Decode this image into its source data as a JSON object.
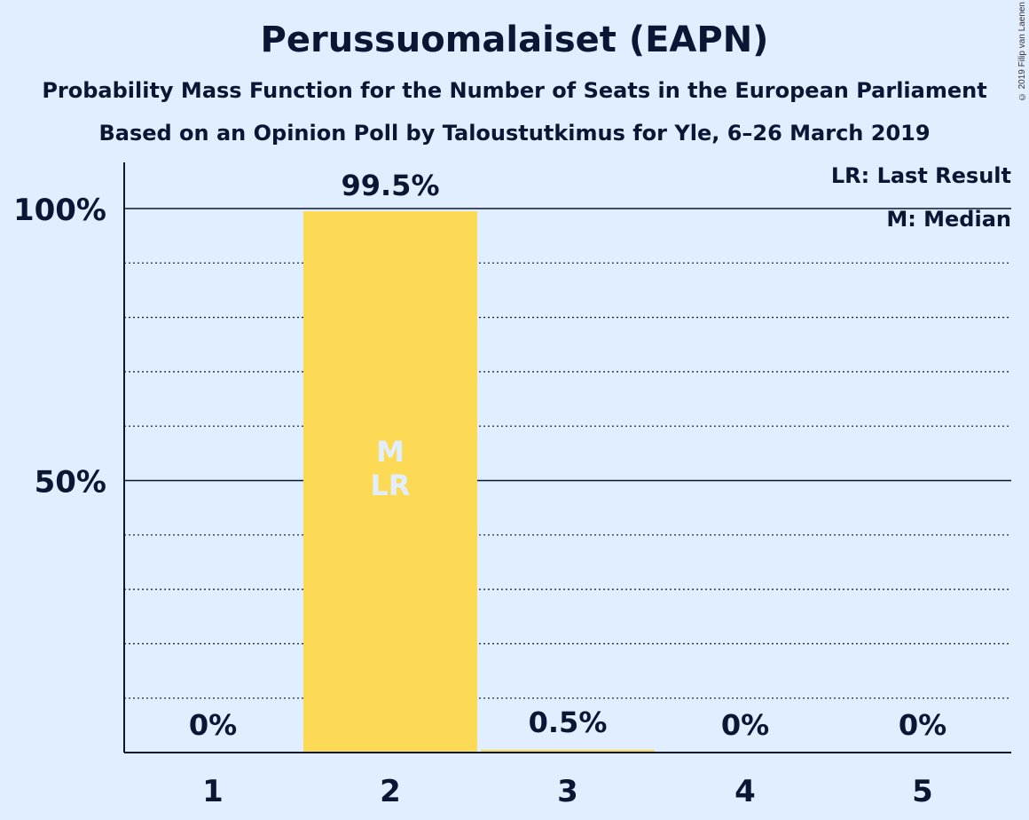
{
  "chart_data": {
    "type": "bar",
    "title": "Perussuomalaiset (EAPN)",
    "subtitle": "Probability Mass Function for the Number of Seats in the European Parliament",
    "subtitle2": "Based on an Opinion Poll by Taloustutkimus for Yle, 6–26 March 2019",
    "categories": [
      "1",
      "2",
      "3",
      "4",
      "5"
    ],
    "values": [
      0,
      99.5,
      0.5,
      0,
      0
    ],
    "value_labels": [
      "0%",
      "99.5%",
      "0.5%",
      "0%",
      "0%"
    ],
    "ylim": [
      0,
      110
    ],
    "yticks": [
      {
        "value": 50,
        "label": "50%"
      },
      {
        "value": 100,
        "label": "100%"
      }
    ],
    "minor_grid_step": 10,
    "bar_color": "#fdda55",
    "in_bar_markers": {
      "category": "2",
      "labels": [
        "M",
        "LR"
      ]
    },
    "legend": [
      "LR: Last Result",
      "M: Median"
    ],
    "legend_position": "top-right",
    "copyright": "© 2019 Filip van Laenen"
  }
}
